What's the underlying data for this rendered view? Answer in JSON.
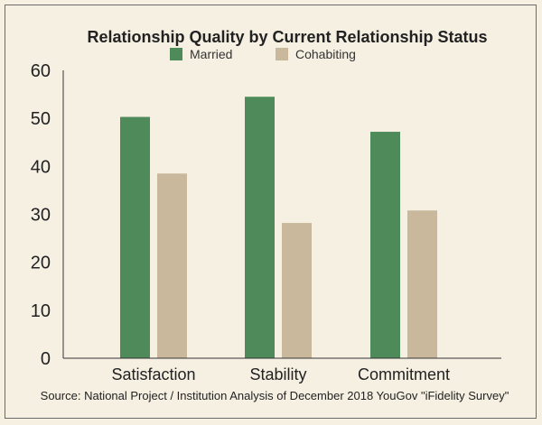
{
  "chart_data": {
    "type": "bar",
    "title": "Relationship Quality by Current Relationship Status",
    "categories": [
      "Satisfaction",
      "Stability",
      "Commitment"
    ],
    "series": [
      {
        "name": "Married",
        "values": [
          50.3,
          54.5,
          47.2
        ],
        "color": "#4e8a5a"
      },
      {
        "name": "Cohabiting",
        "values": [
          38.5,
          28.2,
          30.8
        ],
        "color": "#c9b89c"
      }
    ],
    "ylim": [
      0,
      60
    ],
    "yticks": [
      0,
      10,
      20,
      30,
      40,
      50,
      60
    ],
    "grid": false,
    "legend_position": "top-center",
    "source": "Source: National Project / Institution Analysis of December 2018 YouGov \"iFidelity Survey\""
  }
}
